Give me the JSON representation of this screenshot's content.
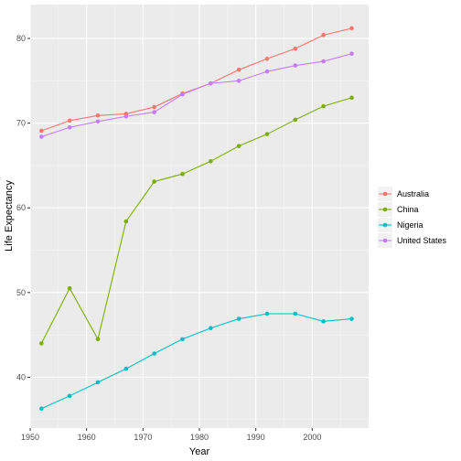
{
  "chart_data": {
    "type": "line",
    "title": "",
    "xlabel": "Year",
    "ylabel": "Life Expectancy",
    "xlim": [
      1950,
      2010
    ],
    "ylim": [
      34,
      84
    ],
    "xticks": [
      1950,
      1960,
      1970,
      1980,
      1990,
      2000
    ],
    "xtick_labels": [
      "1950",
      "1960",
      "1970",
      "1980",
      "1990",
      "2000"
    ],
    "yticks": [
      40,
      50,
      60,
      70,
      80
    ],
    "ytick_labels": [
      "40",
      "50",
      "60",
      "70",
      "80"
    ],
    "grid": true,
    "legend_position": "right",
    "x": [
      1952,
      1957,
      1962,
      1967,
      1972,
      1977,
      1982,
      1987,
      1992,
      1997,
      2002,
      2007
    ],
    "series": [
      {
        "name": "Australia",
        "color": "#F8766D",
        "values": [
          69.1,
          70.3,
          70.9,
          71.1,
          71.9,
          73.5,
          74.7,
          76.3,
          77.6,
          78.8,
          80.4,
          81.2
        ]
      },
      {
        "name": "China",
        "color": "#7CAE00",
        "values": [
          44.0,
          50.5,
          44.5,
          58.4,
          63.1,
          64.0,
          65.5,
          67.3,
          68.7,
          70.4,
          72.0,
          73.0
        ]
      },
      {
        "name": "Nigeria",
        "color": "#00BFC4",
        "values": [
          36.3,
          37.8,
          39.4,
          41.0,
          42.8,
          44.5,
          45.8,
          46.9,
          47.5,
          47.5,
          46.6,
          46.9
        ]
      },
      {
        "name": "United States",
        "color": "#C77CFF",
        "values": [
          68.4,
          69.5,
          70.2,
          70.8,
          71.3,
          73.4,
          74.7,
          75.0,
          76.1,
          76.8,
          77.3,
          78.2
        ]
      }
    ]
  }
}
